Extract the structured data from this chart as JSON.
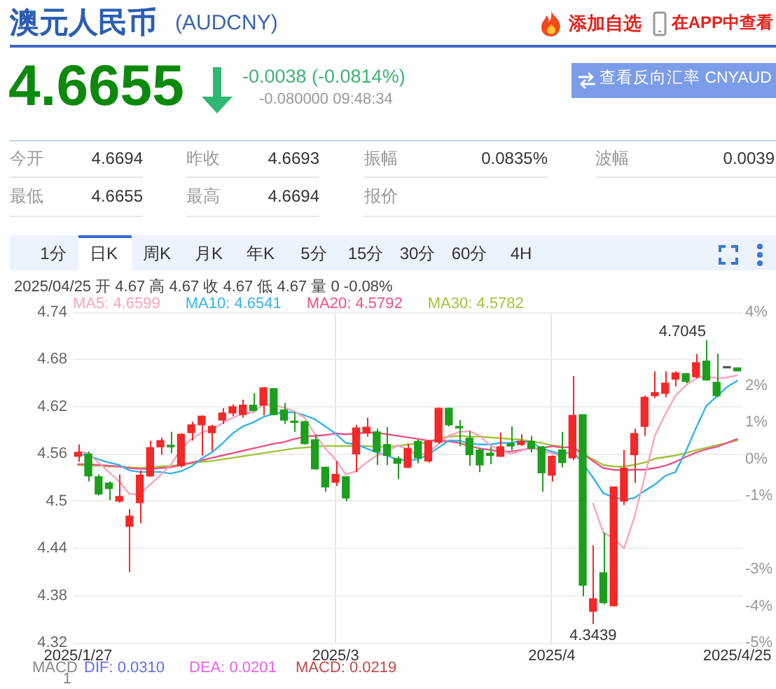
{
  "chart_data": {
    "type": "candlestick",
    "title": "澳元人民币",
    "subtitle": "(AUDCNY)",
    "categories": [
      "2025/1/27",
      null,
      null,
      null,
      null,
      null,
      null,
      null,
      null,
      null,
      null,
      null,
      null,
      null,
      null,
      null,
      null,
      null,
      null,
      null,
      null,
      null,
      null,
      null,
      null,
      "2025/3",
      null,
      null,
      null,
      null,
      null,
      null,
      null,
      null,
      null,
      null,
      null,
      null,
      null,
      null,
      null,
      null,
      null,
      null,
      null,
      null,
      "2025/4",
      null,
      null,
      null,
      null,
      null,
      null,
      null,
      null,
      null,
      null,
      null,
      null,
      null,
      null,
      null,
      null,
      null,
      "2025/4/25"
    ],
    "ohlc": [
      [
        4.557,
        4.572,
        4.55,
        4.562
      ],
      [
        4.56,
        4.563,
        4.525,
        4.532
      ],
      [
        4.531,
        4.534,
        4.507,
        4.509
      ],
      [
        4.523,
        4.525,
        4.501,
        4.516
      ],
      [
        4.5,
        4.534,
        4.498,
        4.506
      ],
      [
        4.468,
        4.49,
        4.41,
        4.481
      ],
      [
        4.498,
        4.539,
        4.472,
        4.533
      ],
      [
        4.532,
        4.577,
        4.531,
        4.568
      ],
      [
        4.569,
        4.581,
        4.559,
        4.577
      ],
      [
        4.571,
        4.588,
        4.561,
        4.569
      ],
      [
        4.545,
        4.586,
        4.543,
        4.585
      ],
      [
        4.587,
        4.601,
        4.577,
        4.597
      ],
      [
        4.597,
        4.609,
        4.558,
        4.608
      ],
      [
        4.587,
        4.597,
        4.564,
        4.595
      ],
      [
        4.603,
        4.618,
        4.598,
        4.612
      ],
      [
        4.612,
        4.623,
        4.608,
        4.62
      ],
      [
        4.61,
        4.629,
        4.606,
        4.622
      ],
      [
        4.622,
        4.637,
        4.615,
        4.615
      ],
      [
        4.622,
        4.645,
        4.609,
        4.644
      ],
      [
        4.643,
        4.644,
        4.609,
        4.61
      ],
      [
        4.616,
        4.625,
        4.598,
        4.603
      ],
      [
        4.601,
        4.613,
        4.588,
        4.6
      ],
      [
        4.601,
        4.602,
        4.572,
        4.573
      ],
      [
        4.578,
        4.585,
        4.54,
        4.541
      ],
      [
        4.543,
        4.544,
        4.512,
        4.518
      ],
      [
        4.524,
        4.551,
        4.519,
        4.534
      ],
      [
        4.531,
        4.532,
        4.5,
        4.504
      ],
      [
        4.56,
        4.597,
        4.537,
        4.593
      ],
      [
        4.587,
        4.606,
        4.582,
        4.594
      ],
      [
        4.588,
        4.592,
        4.546,
        4.563
      ],
      [
        4.572,
        4.594,
        4.546,
        4.558
      ],
      [
        4.554,
        4.557,
        4.528,
        4.548
      ],
      [
        4.543,
        4.573,
        4.542,
        4.567
      ],
      [
        4.576,
        4.578,
        4.548,
        4.555
      ],
      [
        4.551,
        4.577,
        4.549,
        4.576
      ],
      [
        4.575,
        4.619,
        4.573,
        4.618
      ],
      [
        4.618,
        4.619,
        4.595,
        4.597
      ],
      [
        4.595,
        4.603,
        4.57,
        4.593
      ],
      [
        4.58,
        4.589,
        4.545,
        4.559
      ],
      [
        4.565,
        4.567,
        4.537,
        4.546
      ],
      [
        4.561,
        4.569,
        4.547,
        4.558
      ],
      [
        4.557,
        4.587,
        4.556,
        4.569
      ],
      [
        4.573,
        4.595,
        4.565,
        4.57
      ],
      [
        4.572,
        4.585,
        4.57,
        4.576
      ],
      [
        4.576,
        4.583,
        4.562,
        4.567
      ],
      [
        4.569,
        4.57,
        4.512,
        4.536
      ],
      [
        4.533,
        4.558,
        4.525,
        4.557
      ],
      [
        4.565,
        4.588,
        4.543,
        4.549
      ],
      [
        4.555,
        4.659,
        4.552,
        4.609
      ],
      [
        4.61,
        4.61,
        4.379,
        4.393
      ],
      [
        4.36,
        4.444,
        4.3439,
        4.376
      ],
      [
        4.409,
        4.46,
        4.369,
        4.371
      ],
      [
        4.367,
        4.518,
        4.366,
        4.518
      ],
      [
        4.5,
        4.565,
        4.495,
        4.542
      ],
      [
        4.559,
        4.592,
        4.523,
        4.586
      ],
      [
        4.595,
        4.634,
        4.583,
        4.632
      ],
      [
        4.634,
        4.665,
        4.631,
        4.638
      ],
      [
        4.637,
        4.665,
        4.632,
        4.65
      ],
      [
        4.655,
        4.665,
        4.646,
        4.663
      ],
      [
        4.662,
        4.663,
        4.65,
        4.652
      ],
      [
        4.658,
        4.687,
        4.656,
        4.676
      ],
      [
        4.678,
        4.7045,
        4.653,
        4.654
      ],
      [
        4.651,
        4.687,
        4.632,
        4.634
      ],
      [
        4.6693,
        4.6693,
        4.6693,
        4.6693
      ],
      [
        4.6694,
        4.6694,
        4.6655,
        4.6655
      ]
    ],
    "colors": [
      "#f32828",
      "#1c9f1c",
      "#1c9f1c",
      "#1c9f1c",
      "#f32828",
      "#f32828",
      "#f32828",
      "#f32828",
      "#f32828",
      "#1c9f1c",
      "#f32828",
      "#f32828",
      "#f32828",
      "#f32828",
      "#f32828",
      "#f32828",
      "#f32828",
      "#1c9f1c",
      "#f32828",
      "#1c9f1c",
      "#1c9f1c",
      "#1c9f1c",
      "#1c9f1c",
      "#1c9f1c",
      "#1c9f1c",
      "#f32828",
      "#1c9f1c",
      "#f32828",
      "#f32828",
      "#1c9f1c",
      "#1c9f1c",
      "#1c9f1c",
      "#f32828",
      "#1c9f1c",
      "#f32828",
      "#f32828",
      "#1c9f1c",
      "#1c9f1c",
      "#1c9f1c",
      "#1c9f1c",
      "#1c9f1c",
      "#f32828",
      "#1c9f1c",
      "#f32828",
      "#1c9f1c",
      "#1c9f1c",
      "#f32828",
      "#1c9f1c",
      "#f32828",
      "#1c9f1c",
      "#f32828",
      "#1c9f1c",
      "#f32828",
      "#f32828",
      "#f32828",
      "#f32828",
      "#f32828",
      "#f32828",
      "#f32828",
      "#1c9f1c",
      "#f32828",
      "#1c9f1c",
      "#1c9f1c",
      "#555555",
      "#1c9f1c"
    ],
    "series": [
      {
        "type": "line",
        "name": "MA5: 4.6599",
        "color": "#f7a3c2",
        "values": [
          4.563,
          4.561,
          4.549,
          4.537,
          4.525,
          4.509,
          4.509,
          4.521,
          4.533,
          4.546,
          4.566,
          4.579,
          4.587,
          4.591,
          4.599,
          4.606,
          4.611,
          4.613,
          4.623,
          4.622,
          4.619,
          4.614,
          4.606,
          4.585,
          4.567,
          4.553,
          4.534,
          4.538,
          4.549,
          4.558,
          4.562,
          4.571,
          4.566,
          4.558,
          4.561,
          4.573,
          4.583,
          4.588,
          4.589,
          4.583,
          4.571,
          4.565,
          4.56,
          4.564,
          4.568,
          4.564,
          4.561,
          4.557,
          4.564,
          null,
          4.497,
          4.46,
          4.453,
          4.44,
          4.479,
          4.53,
          4.583,
          4.61,
          4.634,
          4.647,
          4.656,
          4.659,
          4.656,
          4.657,
          4.66
        ]
      },
      {
        "type": "line",
        "name": "MA10: 4.6541",
        "color": "#36b4e6",
        "values": [
          4.56,
          4.558,
          4.553,
          4.549,
          4.546,
          4.539,
          4.537,
          4.537,
          4.537,
          4.535,
          4.538,
          4.544,
          4.554,
          4.562,
          4.573,
          4.586,
          4.595,
          4.6,
          4.607,
          4.611,
          4.613,
          4.613,
          4.609,
          4.604,
          4.595,
          4.586,
          4.574,
          4.572,
          4.567,
          4.562,
          4.558,
          4.553,
          4.552,
          4.553,
          4.559,
          4.568,
          4.577,
          4.577,
          4.573,
          4.572,
          4.572,
          4.574,
          4.574,
          4.576,
          4.575,
          4.567,
          4.563,
          4.559,
          4.564,
          4.548,
          4.53,
          4.51,
          4.505,
          4.502,
          4.504,
          4.513,
          4.521,
          4.532,
          4.537,
          4.563,
          4.593,
          4.621,
          4.633,
          4.645,
          4.653
        ]
      },
      {
        "type": "line",
        "name": "MA20: 4.5792",
        "color": "#f0508a",
        "values": [
          4.547,
          4.547,
          4.546,
          4.545,
          4.544,
          4.542,
          4.541,
          4.541,
          4.542,
          4.543,
          4.546,
          4.549,
          4.552,
          4.555,
          4.558,
          4.561,
          4.564,
          4.567,
          4.57,
          4.573,
          4.575,
          4.579,
          4.582,
          4.583,
          4.584,
          4.586,
          4.585,
          4.586,
          4.587,
          4.587,
          4.585,
          4.583,
          4.581,
          4.579,
          4.577,
          4.577,
          4.576,
          4.574,
          4.57,
          4.567,
          4.565,
          4.563,
          4.563,
          4.565,
          4.567,
          4.567,
          4.57,
          4.568,
          4.569,
          4.56,
          4.551,
          4.542,
          4.54,
          4.539,
          4.54,
          4.54,
          4.542,
          4.545,
          4.55,
          4.556,
          4.562,
          4.566,
          4.569,
          4.574,
          4.579
        ]
      },
      {
        "type": "line",
        "name": "MA30: 4.5782",
        "color": "#a2c43a",
        "values": [
          4.546,
          4.545,
          4.545,
          4.544,
          4.544,
          4.543,
          4.542,
          4.543,
          4.544,
          4.545,
          4.546,
          4.548,
          4.55,
          4.551,
          4.553,
          4.555,
          4.557,
          4.559,
          4.561,
          4.563,
          4.565,
          4.567,
          4.568,
          4.569,
          4.57,
          4.57,
          4.57,
          4.57,
          4.57,
          4.569,
          4.569,
          4.57,
          4.572,
          4.573,
          4.575,
          4.58,
          4.582,
          4.583,
          4.582,
          4.582,
          4.581,
          4.58,
          4.579,
          4.578,
          4.576,
          4.574,
          4.571,
          4.569,
          null,
          4.561,
          4.553,
          4.546,
          4.544,
          4.544,
          4.546,
          4.549,
          4.554,
          4.556,
          4.558,
          4.561,
          4.565,
          4.568,
          4.571,
          4.574,
          4.577
        ]
      }
    ],
    "ylim": [
      4.32,
      4.74
    ],
    "yticks": [
      4.74,
      4.68,
      4.62,
      4.56,
      4.5,
      4.44,
      4.38,
      4.32
    ],
    "y2lim": [
      -5,
      4
    ],
    "y2ticks": [
      {
        "value": 4,
        "label": "4%"
      },
      {
        "value": 2,
        "label": "2%"
      },
      {
        "value": 1,
        "label": "1%"
      },
      {
        "value": 0,
        "label": "0%"
      },
      {
        "value": -1,
        "label": "-1%"
      },
      {
        "value": -3,
        "label": "-3%"
      },
      {
        "value": -4,
        "label": "-4%"
      },
      {
        "value": -5,
        "label": "-5%"
      }
    ],
    "grid": true,
    "legend": "top left",
    "annotations": [
      "添加自选",
      "在APP中查看",
      "4.6655",
      "-0.0038 (-0.0814%)",
      "-0.080000 09:48:34",
      "查看反向汇率 CNYAUD",
      "今开",
      "4.6694",
      "昨收",
      "4.6693",
      "振幅",
      "0.0835%",
      "波幅",
      "0.0039",
      "最低",
      "4.6655",
      "最高",
      "4.6694",
      "报价",
      "1分",
      "日K",
      "周K",
      "月K",
      "年K",
      "5分",
      "15分",
      "30分",
      "60分",
      "4H",
      "2025/04/25 开 4.67 高 4.67 收 4.67 低 4.67 量 0 -0.08%",
      "4.7045",
      {
        "text": "4.3439",
        "y": 4.3439
      },
      "MACD",
      "DIF: 0.0310",
      "DEA: 0.0201",
      "MACD: 0.0219",
      "1"
    ]
  }
}
